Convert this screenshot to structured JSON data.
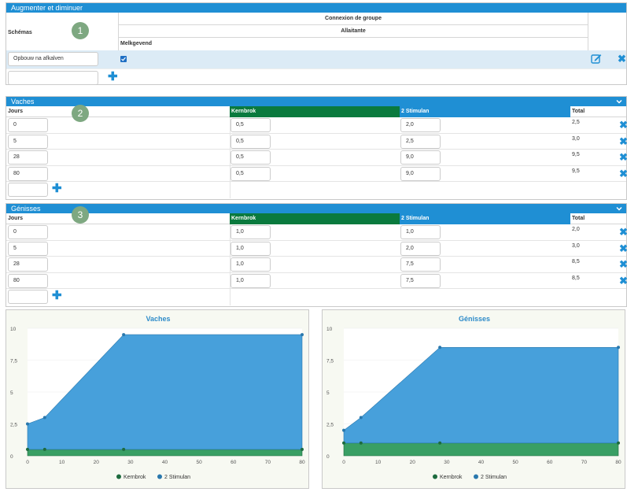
{
  "schemes": {
    "title": "Augmenter et diminuer",
    "schemas_label": "Schémas",
    "group_header": "Connexion de groupe",
    "group_sub1": "Allaitante",
    "group_sub2": "Melkgevend",
    "scheme_name": "Opbouw na afkalven",
    "scheme_checked": true,
    "new_scheme_value": ""
  },
  "badges": [
    "1",
    "2",
    "3"
  ],
  "vaches": {
    "title": "Vaches",
    "col_jours": "Jours",
    "col_kern": "Kernbrok",
    "col_stim": "2 Stimulan",
    "col_total": "Total",
    "rows": [
      {
        "jours": "0",
        "kern": "0,5",
        "stim": "2,0",
        "total": "2,5"
      },
      {
        "jours": "5",
        "kern": "0,5",
        "stim": "2,5",
        "total": "3,0"
      },
      {
        "jours": "28",
        "kern": "0,5",
        "stim": "9,0",
        "total": "9,5"
      },
      {
        "jours": "80",
        "kern": "0,5",
        "stim": "9,0",
        "total": "9,5"
      }
    ]
  },
  "genisses": {
    "title": "Génisses",
    "col_jours": "Jours",
    "col_kern": "Kernbrok",
    "col_stim": "2 Stimulan",
    "col_total": "Total",
    "rows": [
      {
        "jours": "0",
        "kern": "1,0",
        "stim": "1,0",
        "total": "2,0"
      },
      {
        "jours": "5",
        "kern": "1,0",
        "stim": "2,0",
        "total": "3,0"
      },
      {
        "jours": "28",
        "kern": "1,0",
        "stim": "7,5",
        "total": "8,5"
      },
      {
        "jours": "80",
        "kern": "1,0",
        "stim": "7,5",
        "total": "8,5"
      }
    ]
  },
  "colors": {
    "kernbrok": "#2e9a5c",
    "stimulan": "#3d9bd9",
    "header": "#1f8fd4",
    "kern_header": "#0a7a3e"
  },
  "chart_data": [
    {
      "type": "area",
      "title": "Vaches",
      "x": [
        0,
        5,
        28,
        80
      ],
      "series": [
        {
          "name": "Kernbrok",
          "values": [
            0.5,
            0.5,
            0.5,
            0.5
          ]
        },
        {
          "name": "2 Stimulan",
          "values": [
            2.0,
            2.5,
            9.0,
            9.0
          ]
        }
      ],
      "stacked": true,
      "xlim": [
        0,
        80
      ],
      "ylim": [
        0,
        10
      ],
      "xticks": [
        0,
        10,
        20,
        30,
        40,
        50,
        60,
        70,
        80
      ],
      "yticks": [
        0,
        2.5,
        5,
        7.5,
        10
      ],
      "ytick_labels": [
        "0",
        "2,5",
        "5",
        "7,5",
        "10"
      ],
      "legend": "bottom"
    },
    {
      "type": "area",
      "title": "Génisses",
      "x": [
        0,
        5,
        28,
        80
      ],
      "series": [
        {
          "name": "Kernbrok",
          "values": [
            1.0,
            1.0,
            1.0,
            1.0
          ]
        },
        {
          "name": "2 Stimulan",
          "values": [
            1.0,
            2.0,
            7.5,
            7.5
          ]
        }
      ],
      "stacked": true,
      "xlim": [
        0,
        80
      ],
      "ylim": [
        0,
        10
      ],
      "xticks": [
        0,
        10,
        20,
        30,
        40,
        50,
        60,
        70,
        80
      ],
      "yticks": [
        0,
        2.5,
        5,
        7.5,
        10
      ],
      "ytick_labels": [
        "0",
        "2,5",
        "5",
        "7,5",
        "10"
      ],
      "legend": "bottom"
    }
  ]
}
